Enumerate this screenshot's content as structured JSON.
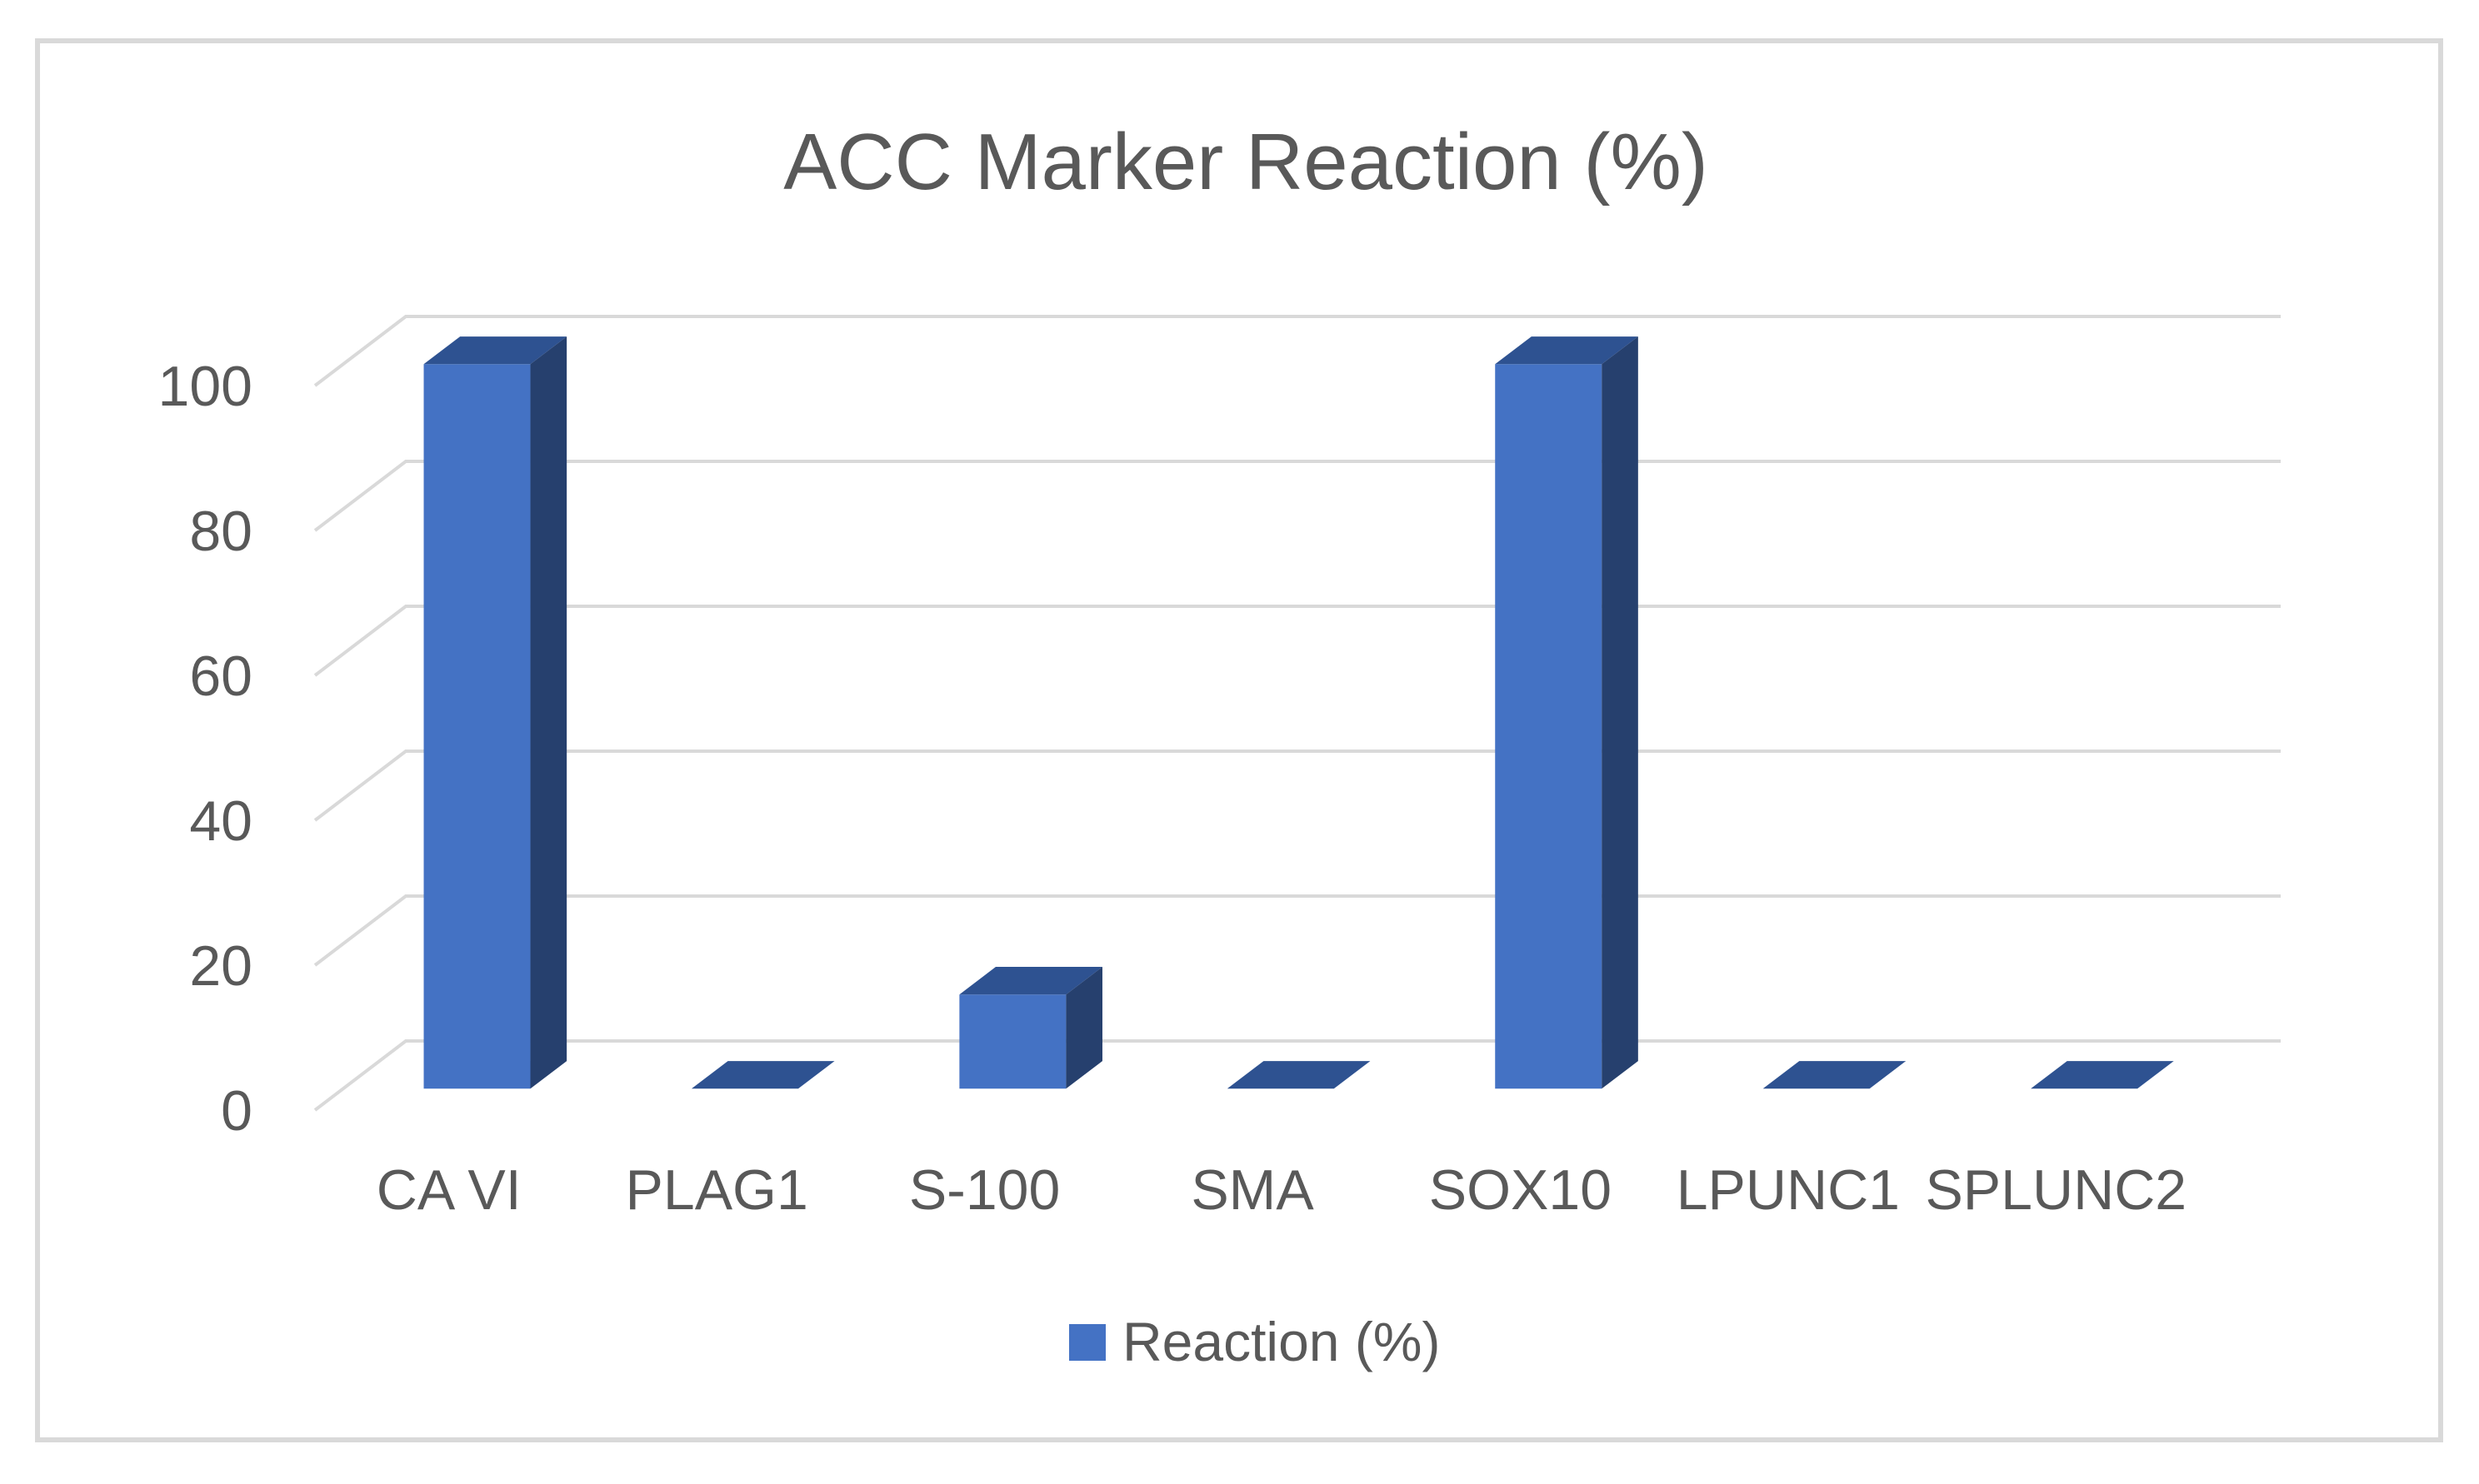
{
  "title": "ACC Marker Reaction (%)",
  "legend": {
    "label": "Reaction (%)",
    "position": "bottom"
  },
  "chart_data": {
    "type": "bar",
    "style": "3d-column",
    "title": "ACC Marker Reaction (%)",
    "categories": [
      "CA VI",
      "PLAG1",
      "S-100",
      "SMA",
      "SOX10",
      "LPUNC1",
      "SPLUNC2"
    ],
    "series": [
      {
        "name": "Reaction (%)",
        "values": [
          100,
          0,
          13,
          0,
          100,
          0,
          0
        ]
      }
    ],
    "xlabel": "",
    "ylabel": "",
    "ylim": [
      0,
      100
    ],
    "yticks": [
      0,
      20,
      40,
      60,
      80,
      100
    ],
    "grid": true,
    "legend_position": "bottom",
    "colors": {
      "bar_front": "#4472C4",
      "bar_top": "#2E5291",
      "bar_side": "#26406E",
      "gridline": "#D9D9D9",
      "border": "#D9D9D9",
      "text": "#595959",
      "background": "#FFFFFF"
    }
  }
}
